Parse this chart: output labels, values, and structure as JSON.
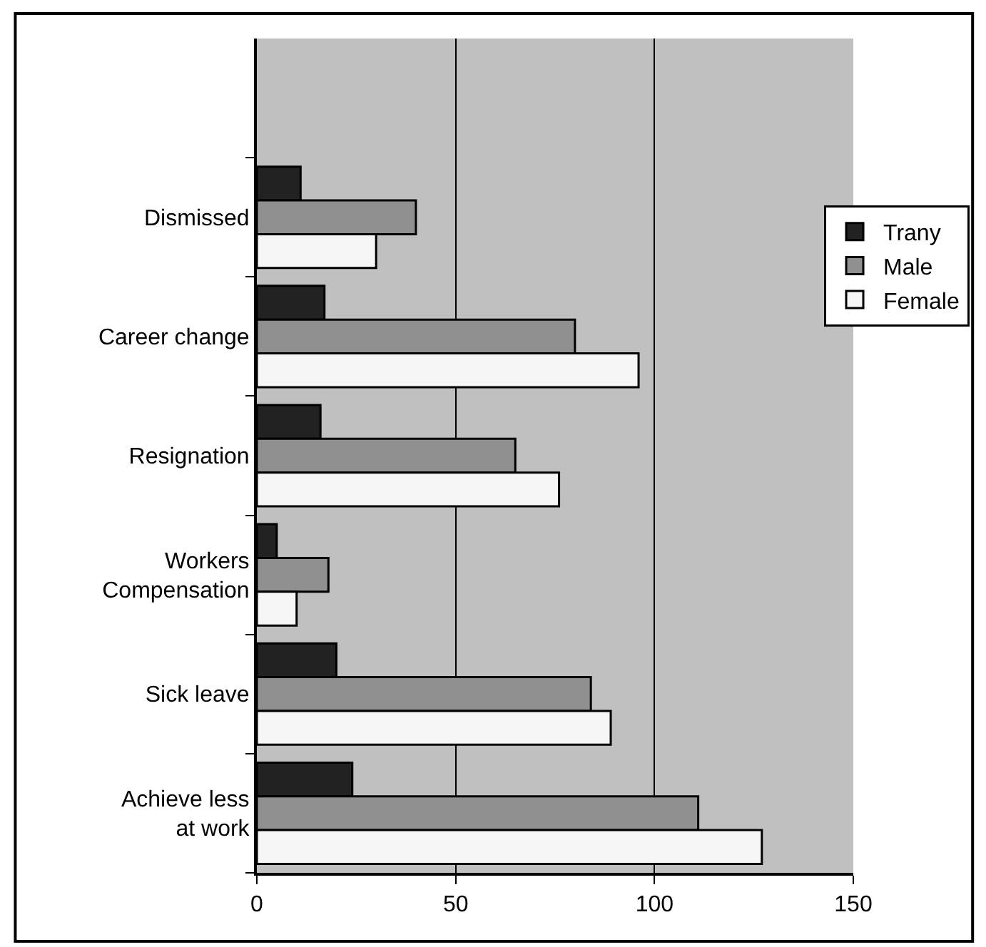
{
  "chart_data": {
    "type": "bar",
    "orientation": "horizontal",
    "categories": [
      null,
      "Dismissed",
      "Career change",
      "Resignation",
      "Workers\nCompensation",
      "Sick leave",
      "Achieve less\nat work"
    ],
    "series": [
      {
        "name": "Trany",
        "color": "#222222",
        "values": [
          null,
          11,
          17,
          16,
          5,
          20,
          24
        ]
      },
      {
        "name": "Male",
        "color": "#909090",
        "values": [
          null,
          40,
          80,
          65,
          18,
          84,
          111
        ]
      },
      {
        "name": "Female",
        "color": "#f6f6f6",
        "values": [
          null,
          30,
          96,
          76,
          10,
          89,
          127
        ]
      }
    ],
    "xlim": [
      0,
      150
    ],
    "xticks": [
      0,
      50,
      100,
      150
    ],
    "grid": "x",
    "legend": "right"
  }
}
